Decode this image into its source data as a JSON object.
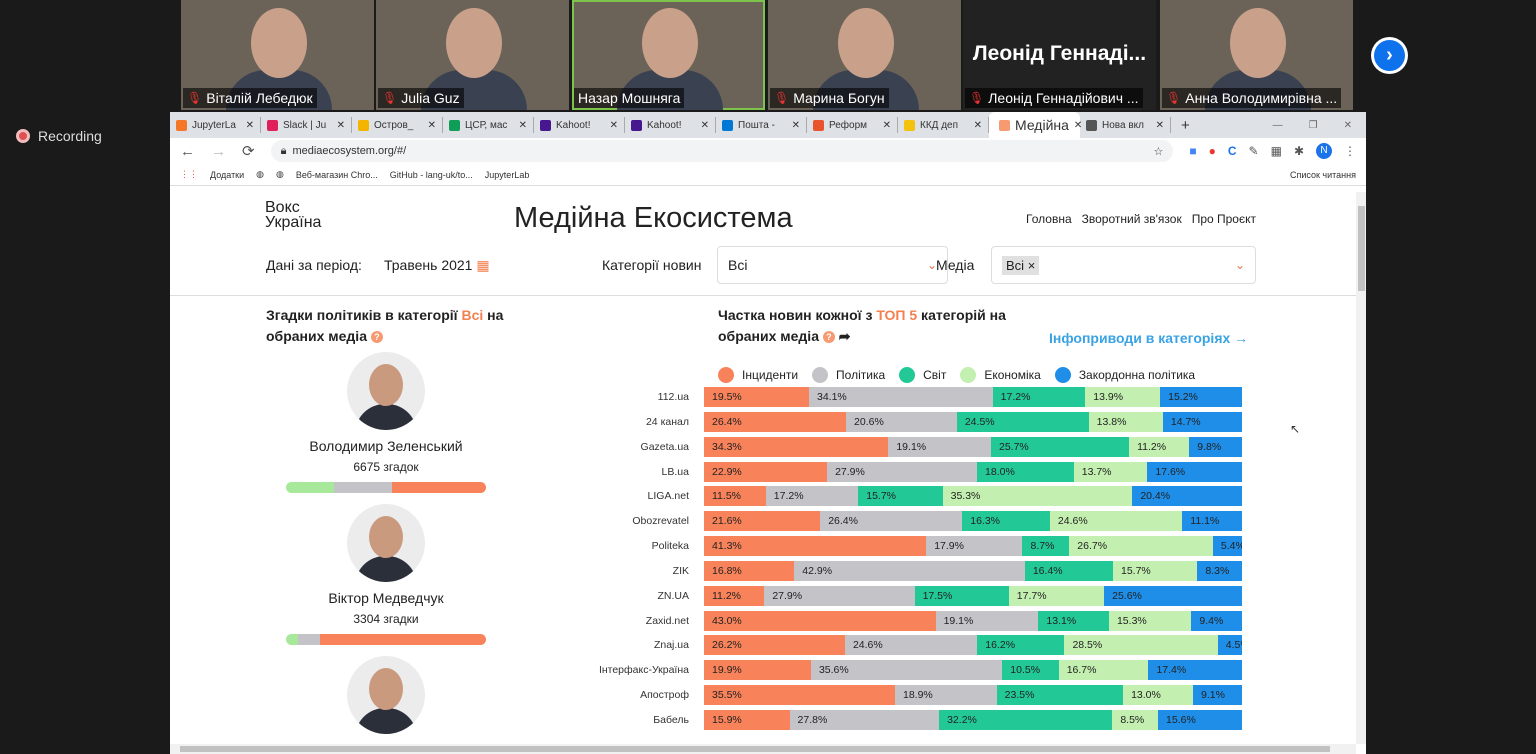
{
  "meeting": {
    "participants": [
      {
        "name": "Віталій Лебедюк",
        "video": true
      },
      {
        "name": "Julia Guz",
        "video": true
      },
      {
        "name": "Назар Мошняга",
        "video": true,
        "active": true
      },
      {
        "name": "Марина Богун",
        "video": true
      },
      {
        "name": "Леонід Геннадійович ...",
        "display": "Леонід Геннаді...",
        "video": false
      },
      {
        "name": "Анна Володимирівна ...",
        "video": true
      }
    ],
    "recording_label": "Recording",
    "next_icon": "chevron-right-icon"
  },
  "browser": {
    "tabs": [
      {
        "label": "JupyterLa",
        "color": "#f37726"
      },
      {
        "label": "Slack | Ju",
        "color": "#e01e5a"
      },
      {
        "label": "Остров_",
        "color": "#f4b400"
      },
      {
        "label": "ЦСР, мас",
        "color": "#0f9d58"
      },
      {
        "label": "Kahoot!",
        "color": "#46178f"
      },
      {
        "label": "Kahoot!",
        "color": "#46178f"
      },
      {
        "label": "Пошта -",
        "color": "#0078d4"
      },
      {
        "label": "Реформ",
        "color": "#e8542c"
      },
      {
        "label": "ККД деп",
        "color": "#f4c20d"
      },
      {
        "label": "Медійна",
        "color": "#f79a72",
        "selected": true
      },
      {
        "label": "Нова вкл",
        "color": "#555"
      }
    ],
    "url": "mediaecosystem.org/#/",
    "bookmarks": [
      "Додатки",
      "Веб-магазин Chro...",
      "GitHub - lang-uk/to...",
      "JupyterLab"
    ],
    "reading_list": "Список читання",
    "profile_initial": "N"
  },
  "site": {
    "logo_line1": "Вокс",
    "logo_line2": "Україна",
    "title": "Медійна Екосистема",
    "nav": [
      "Головна",
      "Зворотний зв'язок",
      "Про Проєкт"
    ],
    "period_label": "Дані за період:",
    "period_value": "Травень 2021",
    "category_label": "Категорії новин",
    "category_value": "Всі",
    "media_label": "Медіа",
    "media_chip": "Всі",
    "left_title_a": "Згадки політиків в категорії ",
    "left_title_acc": "Всі",
    "left_title_b": " на обраних медіа",
    "right_title_a": "Частка новин кожної з ",
    "right_title_acc": "ТОП 5",
    "right_title_b": " категорій на обраних медіа",
    "info_link": "Інфоприводи в категоріях →",
    "politicians": [
      {
        "name": "Володимир Зеленський",
        "mentions": "6675 згадок",
        "shares": [
          0.24,
          0.29,
          0.47
        ]
      },
      {
        "name": "Віктор Медведчук",
        "mentions": "3304 згадки",
        "shares": [
          0.06,
          0.11,
          0.83
        ]
      },
      {
        "name": "",
        "mentions": "",
        "shares": []
      }
    ]
  },
  "chart_data": {
    "type": "bar",
    "stacked": true,
    "orientation": "horizontal",
    "title": "Частка новин кожної з ТОП 5 категорій на обраних медіа",
    "legend_position": "top",
    "series": [
      {
        "name": "Інциденти",
        "color": "#f8825a",
        "values": [
          19.5,
          26.4,
          34.3,
          22.9,
          11.5,
          21.6,
          41.3,
          16.8,
          11.2,
          43.0,
          26.2,
          19.9,
          35.5,
          15.9
        ]
      },
      {
        "name": "Політика",
        "color": "#c4c4c8",
        "values": [
          34.1,
          20.6,
          19.1,
          27.9,
          17.2,
          26.4,
          17.9,
          42.9,
          27.9,
          19.1,
          24.6,
          35.6,
          18.9,
          27.8
        ]
      },
      {
        "name": "Світ",
        "color": "#22c997",
        "values": [
          17.2,
          24.5,
          25.7,
          18.0,
          15.7,
          16.3,
          8.7,
          16.4,
          17.5,
          13.1,
          16.2,
          10.5,
          23.5,
          32.2
        ]
      },
      {
        "name": "Економіка",
        "color": "#c3f0b0",
        "values": [
          13.9,
          13.8,
          11.2,
          13.7,
          35.3,
          24.6,
          26.7,
          15.7,
          17.7,
          15.3,
          28.5,
          16.7,
          13.0,
          8.5
        ]
      },
      {
        "name": "Закордонна політика",
        "color": "#1e8ee8",
        "values": [
          15.2,
          14.7,
          9.8,
          17.6,
          20.4,
          11.1,
          5.4,
          8.3,
          25.6,
          9.4,
          4.5,
          17.4,
          9.1,
          15.6
        ]
      }
    ],
    "categories": [
      "112.ua",
      "24 канал",
      "Gazeta.ua",
      "LB.ua",
      "LIGA.net",
      "Obozrevatel",
      "Politeka",
      "ZIK",
      "ZN.UA",
      "Zaxid.net",
      "Znaj.ua",
      "Інтерфакс-Україна",
      "Апостроф",
      "Бабель"
    ],
    "unit": "%"
  }
}
